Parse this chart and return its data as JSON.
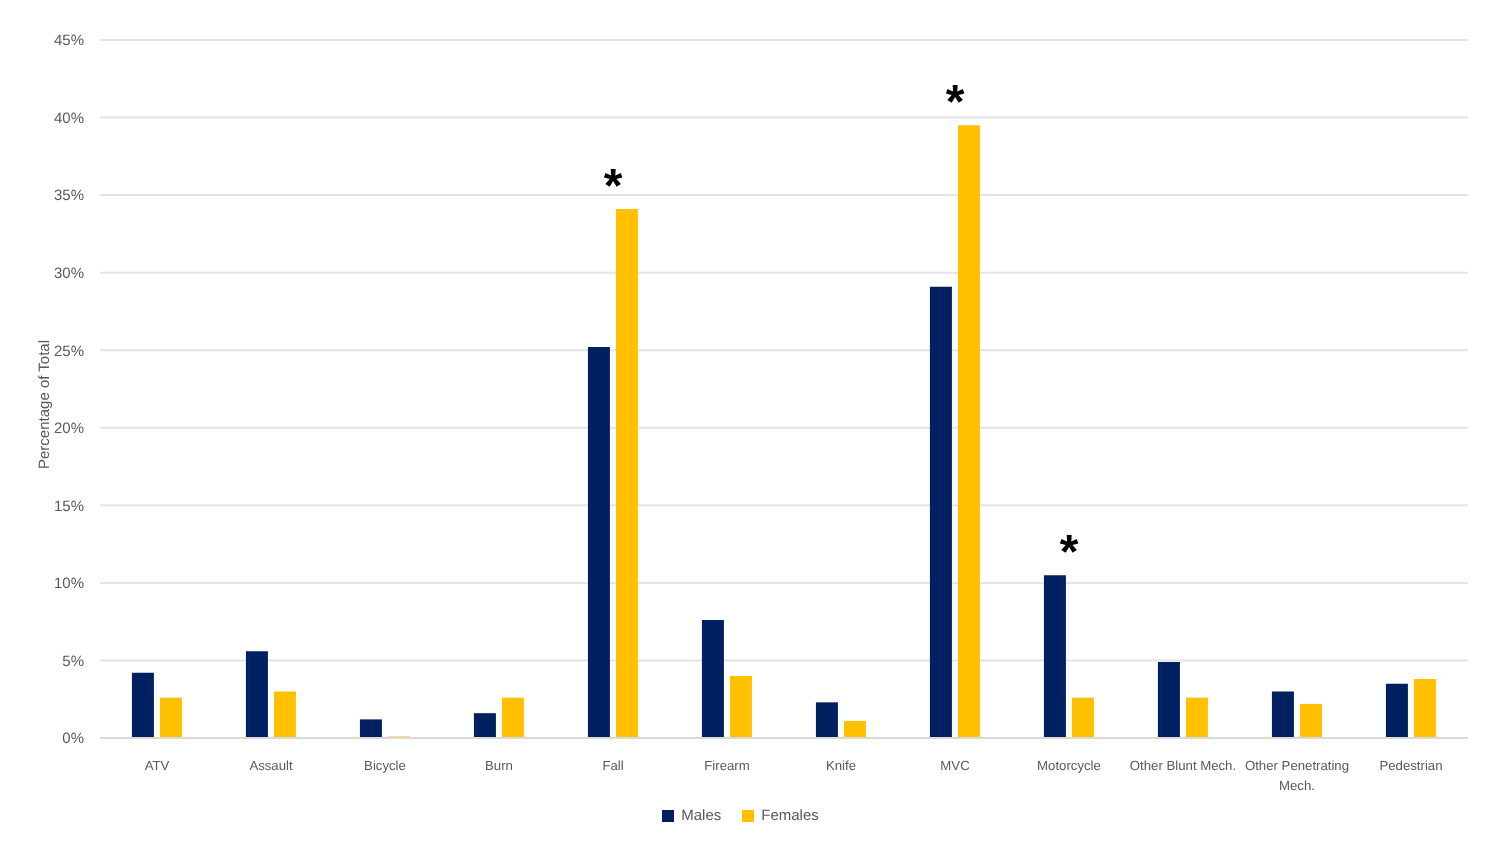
{
  "chart_data": {
    "type": "bar",
    "ylabel": "Percentage of Total",
    "categories": [
      "ATV",
      "Assault",
      "Bicycle",
      "Burn",
      "Fall",
      "Firearm",
      "Knife",
      "MVC",
      "Motorcycle",
      "Other Blunt Mech.",
      "Other Penetrating Mech.",
      "Pedestrian"
    ],
    "series": [
      {
        "name": "Males",
        "color": "#002060",
        "values": [
          4.2,
          5.6,
          1.2,
          1.6,
          25.2,
          7.6,
          2.3,
          29.1,
          10.5,
          4.9,
          3.0,
          3.5
        ]
      },
      {
        "name": "Females",
        "color": "#ffc000",
        "values": [
          2.6,
          3.0,
          0.1,
          2.6,
          34.1,
          4.0,
          1.1,
          39.5,
          2.6,
          2.6,
          2.2,
          3.8
        ]
      }
    ],
    "ylim": [
      0,
      45
    ],
    "yticks": [
      {
        "value": 0,
        "label": "0%"
      },
      {
        "value": 5,
        "label": "5%"
      },
      {
        "value": 10,
        "label": "10%"
      },
      {
        "value": 15,
        "label": "15%"
      },
      {
        "value": 20,
        "label": "20%"
      },
      {
        "value": 25,
        "label": "25%"
      },
      {
        "value": 30,
        "label": "30%"
      },
      {
        "value": 35,
        "label": "35%"
      },
      {
        "value": 40,
        "label": "40%"
      },
      {
        "value": 45,
        "label": "45%"
      }
    ],
    "annotations": [
      {
        "text": "*",
        "x": "Fall",
        "y": 34.1
      },
      {
        "text": "*",
        "x": "MVC",
        "y": 39.5
      },
      {
        "text": "*",
        "x": "Motorcycle",
        "y": 10.5
      }
    ],
    "grid": "y",
    "legend": "bottom"
  }
}
